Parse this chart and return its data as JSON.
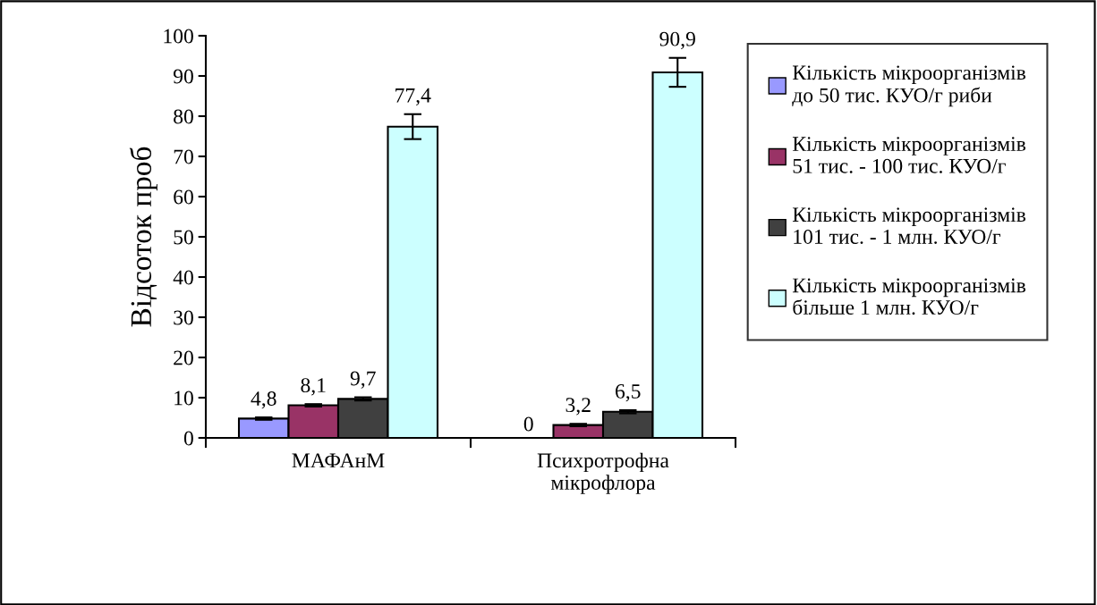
{
  "chart_data": {
    "type": "bar",
    "ylabel": "Відсоток проб",
    "categories": [
      "МАФАнМ",
      "Психротрофна\nмікрофлора"
    ],
    "series": [
      {
        "name": "Кількість мікроорганізмів\nдо 50 тис. КУО/г риби",
        "color": "#9999ff",
        "values": [
          4.8,
          0
        ],
        "errors": [
          0.3,
          null
        ],
        "value_labels": [
          "4,8",
          "0"
        ]
      },
      {
        "name": "Кількість мікроорганізмів\n51 тис. - 100 тис. КУО/г",
        "color": "#993366",
        "values": [
          8.1,
          3.2
        ],
        "errors": [
          0.3,
          0.3
        ],
        "value_labels": [
          "8,1",
          "3,2"
        ]
      },
      {
        "name": "Кількість мікроорганізмів\n101 тис. - 1 млн. КУО/г",
        "color": "#404040",
        "values": [
          9.7,
          6.5
        ],
        "errors": [
          0.4,
          0.4
        ],
        "value_labels": [
          "9,7",
          "6,5"
        ]
      },
      {
        "name": "Кількість мікроорганізмів\nбільше 1 млн. КУО/г",
        "color": "#ccffff",
        "values": [
          77.4,
          90.9
        ],
        "errors": [
          3.1,
          3.6
        ],
        "value_labels": [
          "77,4",
          "90,9"
        ]
      }
    ],
    "ylim": [
      0,
      100
    ],
    "yticks": [
      0,
      10,
      20,
      30,
      40,
      50,
      60,
      70,
      80,
      90,
      100
    ],
    "grid": false,
    "legend": "right"
  }
}
